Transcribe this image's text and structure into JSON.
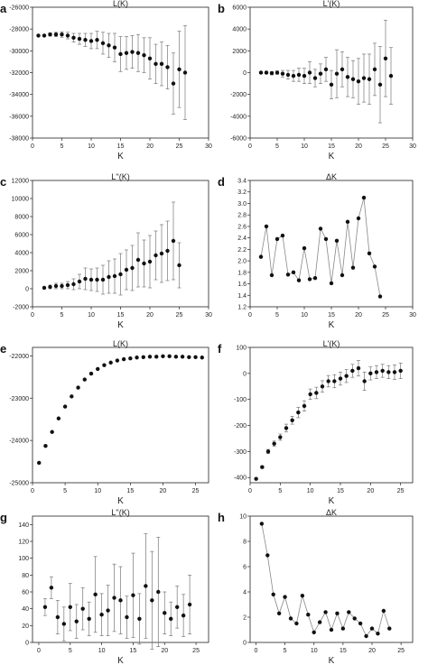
{
  "chart_data": [
    {
      "panel": "a",
      "type": "scatter",
      "title": "L(K)",
      "xlabel": "K",
      "ylabel": "",
      "xlim": [
        0,
        30
      ],
      "ylim": [
        -38000,
        -26000
      ],
      "xticks": [
        "0",
        "5",
        "10",
        "15",
        "20",
        "25",
        "30"
      ],
      "yticks": [
        "-38000",
        "-36000",
        "-34000",
        "-32000",
        "-30000",
        "-28000",
        "-26000"
      ],
      "x": [
        1,
        2,
        3,
        4,
        5,
        6,
        7,
        8,
        9,
        10,
        11,
        12,
        13,
        14,
        15,
        16,
        17,
        18,
        19,
        20,
        21,
        22,
        23,
        24,
        25,
        26
      ],
      "y": [
        -28600,
        -28600,
        -28500,
        -28500,
        -28500,
        -28600,
        -28800,
        -28900,
        -29000,
        -29100,
        -29000,
        -29300,
        -29500,
        -29700,
        -30300,
        -30200,
        -30100,
        -30200,
        -30400,
        -30700,
        -31200,
        -31200,
        -31500,
        -33000,
        -31700,
        -32000
      ],
      "err": [
        50,
        80,
        150,
        200,
        250,
        300,
        400,
        500,
        600,
        700,
        800,
        1000,
        1100,
        1300,
        1600,
        1500,
        1500,
        1700,
        1600,
        1900,
        1800,
        2000,
        2000,
        2800,
        3500,
        4300
      ]
    },
    {
      "panel": "b",
      "type": "scatter",
      "title": "L'(K)",
      "xlabel": "K",
      "ylabel": "",
      "xlim": [
        0,
        30
      ],
      "ylim": [
        -6000,
        6000
      ],
      "xticks": [
        "0",
        "5",
        "10",
        "15",
        "20",
        "25",
        "30"
      ],
      "yticks": [
        "-6000",
        "-4000",
        "-2000",
        "0",
        "2000",
        "4000",
        "6000"
      ],
      "x": [
        2,
        3,
        4,
        5,
        6,
        7,
        8,
        9,
        10,
        11,
        12,
        13,
        14,
        15,
        16,
        17,
        18,
        19,
        20,
        21,
        22,
        23,
        24,
        25,
        26
      ],
      "y": [
        0,
        0,
        -50,
        0,
        -100,
        -200,
        -300,
        -200,
        -300,
        0,
        -500,
        -100,
        300,
        -1100,
        -100,
        300,
        -400,
        -600,
        -800,
        -500,
        -600,
        300,
        -1100,
        1300,
        -300
      ],
      "err": [
        100,
        120,
        150,
        150,
        300,
        400,
        500,
        600,
        700,
        1000,
        800,
        900,
        1100,
        1300,
        2200,
        1600,
        1800,
        1700,
        2100,
        2200,
        2300,
        2400,
        3500,
        3500,
        2600
      ]
    },
    {
      "panel": "c",
      "type": "scatter",
      "title": "L''(K)",
      "xlabel": "K",
      "ylabel": "",
      "xlim": [
        0,
        30
      ],
      "ylim": [
        -2000,
        12000
      ],
      "xticks": [
        "0",
        "5",
        "10",
        "15",
        "20",
        "25",
        "30"
      ],
      "yticks": [
        "-2000",
        "0",
        "2000",
        "4000",
        "6000",
        "8000",
        "10000",
        "12000"
      ],
      "x": [
        2,
        3,
        4,
        5,
        6,
        7,
        8,
        9,
        10,
        11,
        12,
        13,
        14,
        15,
        16,
        17,
        18,
        19,
        20,
        21,
        22,
        23,
        24,
        25
      ],
      "y": [
        100,
        200,
        300,
        300,
        400,
        500,
        800,
        1100,
        1000,
        1000,
        1000,
        1300,
        1400,
        1600,
        2100,
        2300,
        3200,
        2800,
        3000,
        3700,
        3900,
        4200,
        5300,
        2600
      ],
      "err": [
        100,
        200,
        300,
        300,
        400,
        600,
        800,
        1200,
        1200,
        1300,
        1600,
        1800,
        1900,
        2300,
        2200,
        2500,
        3000,
        2600,
        2900,
        2700,
        3200,
        3300,
        4300,
        2500
      ]
    },
    {
      "panel": "d",
      "type": "line",
      "title": "ΔK",
      "xlabel": "K",
      "ylabel": "",
      "xlim": [
        0,
        30
      ],
      "ylim": [
        1.2,
        3.4
      ],
      "xticks": [
        "0",
        "5",
        "10",
        "15",
        "20",
        "25",
        "30"
      ],
      "yticks": [
        "1.2",
        "1.4",
        "1.6",
        "1.8",
        "2.0",
        "2.2",
        "2.4",
        "2.6",
        "2.8",
        "3.0",
        "3.2",
        "3.4"
      ],
      "x": [
        2,
        3,
        4,
        5,
        6,
        7,
        8,
        9,
        10,
        11,
        12,
        13,
        14,
        15,
        16,
        17,
        18,
        19,
        20,
        21,
        22,
        23,
        24,
        25
      ],
      "y": [
        2.07,
        2.6,
        1.75,
        2.38,
        2.44,
        1.76,
        1.8,
        1.66,
        2.22,
        1.68,
        1.7,
        2.56,
        2.38,
        1.61,
        2.35,
        1.75,
        2.68,
        1.88,
        2.74,
        3.1,
        2.13,
        1.9,
        1.38,
        null
      ]
    },
    {
      "panel": "e",
      "type": "scatter",
      "title": "L(K)",
      "xlabel": "K",
      "ylabel": "",
      "xlim": [
        0,
        27
      ],
      "ylim": [
        -25000,
        -21800
      ],
      "xticks": [
        "0",
        "5",
        "10",
        "15",
        "20",
        "25"
      ],
      "yticks": [
        "-25000",
        "-24000",
        "-23000",
        "-22000"
      ],
      "x": [
        1,
        2,
        3,
        4,
        5,
        6,
        7,
        8,
        9,
        10,
        11,
        12,
        13,
        14,
        15,
        16,
        17,
        18,
        19,
        20,
        21,
        22,
        23,
        24,
        25,
        26
      ],
      "y": [
        -24530,
        -24130,
        -23800,
        -23480,
        -23200,
        -22960,
        -22750,
        -22560,
        -22420,
        -22310,
        -22220,
        -22160,
        -22110,
        -22080,
        -22060,
        -22040,
        -22030,
        -22020,
        -22020,
        -22010,
        -22010,
        -22020,
        -22020,
        -22030,
        -22030,
        -22040
      ]
    },
    {
      "panel": "f",
      "type": "scatter",
      "title": "L'(K)",
      "xlabel": "K",
      "ylabel": "",
      "xlim": [
        0,
        27
      ],
      "ylim": [
        -420,
        100
      ],
      "xticks": [
        "0",
        "5",
        "10",
        "15",
        "20",
        "25"
      ],
      "yticks": [
        "-400",
        "-300",
        "-200",
        "-100",
        "0",
        "100"
      ],
      "x": [
        1,
        2,
        3,
        4,
        5,
        6,
        7,
        8,
        9,
        10,
        11,
        12,
        13,
        14,
        15,
        16,
        17,
        18,
        19,
        20,
        21,
        22,
        23,
        24,
        25
      ],
      "y": [
        -405,
        -360,
        -300,
        -270,
        -245,
        -210,
        -180,
        -150,
        -125,
        -80,
        -75,
        -50,
        -30,
        -30,
        -20,
        -10,
        10,
        20,
        -30,
        0,
        5,
        10,
        5,
        5,
        10
      ],
      "err": [
        0,
        5,
        8,
        10,
        12,
        15,
        15,
        20,
        20,
        20,
        22,
        22,
        22,
        25,
        25,
        25,
        25,
        30,
        35,
        25,
        25,
        25,
        25,
        28,
        30
      ]
    },
    {
      "panel": "g",
      "type": "scatter",
      "title": "L''(K)",
      "xlabel": "K",
      "ylabel": "",
      "xlim": [
        -1,
        27
      ],
      "ylim": [
        0,
        150
      ],
      "xticks": [
        "0",
        "5",
        "10",
        "15",
        "20",
        "25"
      ],
      "yticks": [
        "0",
        "20",
        "40",
        "60",
        "80",
        "100",
        "120",
        "140"
      ],
      "x": [
        1,
        2,
        3,
        4,
        5,
        6,
        7,
        8,
        9,
        10,
        11,
        12,
        13,
        14,
        15,
        16,
        17,
        18,
        19,
        20,
        21,
        22,
        23,
        24
      ],
      "y": [
        42,
        65,
        30,
        22,
        42,
        25,
        40,
        28,
        57,
        33,
        38,
        53,
        50,
        30,
        56,
        28,
        67,
        50,
        60,
        35,
        28,
        42,
        32,
        45
      ],
      "err": [
        10,
        13,
        20,
        20,
        28,
        20,
        25,
        20,
        45,
        25,
        30,
        40,
        40,
        25,
        50,
        30,
        62,
        58,
        65,
        25,
        20,
        25,
        25,
        35
      ]
    },
    {
      "panel": "h",
      "type": "line",
      "title": "ΔK",
      "xlabel": "K",
      "ylabel": "",
      "xlim": [
        -1,
        27
      ],
      "ylim": [
        0,
        10
      ],
      "xticks": [
        "0",
        "5",
        "10",
        "15",
        "20",
        "25"
      ],
      "yticks": [
        "0",
        "2",
        "4",
        "6",
        "8",
        "10"
      ],
      "x": [
        1,
        2,
        3,
        4,
        5,
        6,
        7,
        8,
        9,
        10,
        11,
        12,
        13,
        14,
        15,
        16,
        17,
        18,
        19,
        20,
        21,
        22,
        23,
        24
      ],
      "y": [
        9.4,
        6.9,
        3.8,
        2.3,
        3.6,
        1.9,
        1.5,
        3.7,
        2.2,
        0.8,
        1.6,
        2.4,
        1.0,
        2.3,
        1.1,
        2.4,
        1.9,
        1.5,
        0.5,
        1.1,
        0.7,
        2.5,
        1.1,
        null
      ]
    }
  ]
}
